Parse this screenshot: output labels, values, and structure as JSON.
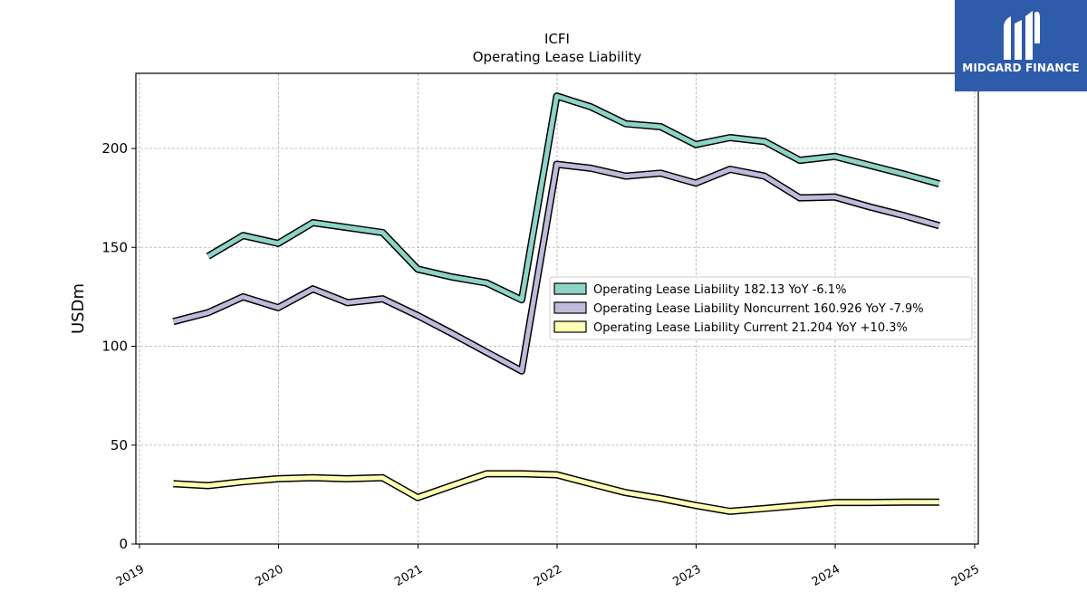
{
  "brand": {
    "name": "MIDGARD FINANCE",
    "bg_color": "#2f5bab"
  },
  "chart_data": {
    "type": "line",
    "title": "ICFI",
    "subtitle": "Operating Lease Liability",
    "xlabel": "",
    "ylabel": "USDm",
    "xlim": [
      "2019-01-01",
      "2025-01-01"
    ],
    "ylim": [
      0,
      238
    ],
    "x_ticks": [
      "2019",
      "2020",
      "2021",
      "2022",
      "2023",
      "2024",
      "2025"
    ],
    "y_ticks": [
      0,
      50,
      100,
      150,
      200
    ],
    "grid": true,
    "legend_position": "center-right",
    "x": [
      "2019-03-31",
      "2019-06-30",
      "2019-09-30",
      "2019-12-31",
      "2020-03-31",
      "2020-06-30",
      "2020-09-30",
      "2020-12-31",
      "2021-03-31",
      "2021-06-30",
      "2021-09-30",
      "2021-12-31",
      "2022-03-31",
      "2022-06-30",
      "2022-09-30",
      "2022-12-31",
      "2023-03-31",
      "2023-06-30",
      "2023-09-30",
      "2023-12-31",
      "2024-03-31",
      "2024-06-30",
      "2024-09-30"
    ],
    "series": [
      {
        "name": "Operating Lease Liability",
        "legend": "Operating Lease Liability  182.13 YoY -6.1%",
        "color": "#8dd3c7",
        "values": [
          null,
          145.5,
          156,
          152,
          162.5,
          160,
          157.5,
          139,
          135,
          132,
          123.5,
          226.5,
          221,
          212.5,
          211,
          202,
          205.5,
          203.5,
          194,
          196,
          191.5,
          187,
          182.13
        ]
      },
      {
        "name": "Operating Lease Liability Noncurrent",
        "legend": "Operating Lease Liability Noncurrent  160.926 YoY -7.9%",
        "color": "#bebada",
        "values": [
          112.5,
          117,
          125,
          119.5,
          129,
          122,
          124,
          115.5,
          106.5,
          97,
          87.5,
          192,
          190,
          186,
          187.5,
          182.5,
          189.5,
          186,
          175,
          175.5,
          170.5,
          166,
          160.926
        ]
      },
      {
        "name": "Operating Lease Liability Current",
        "legend": "Operating Lease Liability Current  21.204 YoY +10.3%",
        "color": "#ffffb3",
        "values": [
          30.5,
          29.5,
          31.5,
          33,
          33.5,
          33,
          33.5,
          23.5,
          29.5,
          35.5,
          35.5,
          35,
          30.5,
          26,
          23,
          19.5,
          16.5,
          18,
          19.5,
          21,
          21,
          21.2,
          21.204
        ]
      }
    ]
  }
}
